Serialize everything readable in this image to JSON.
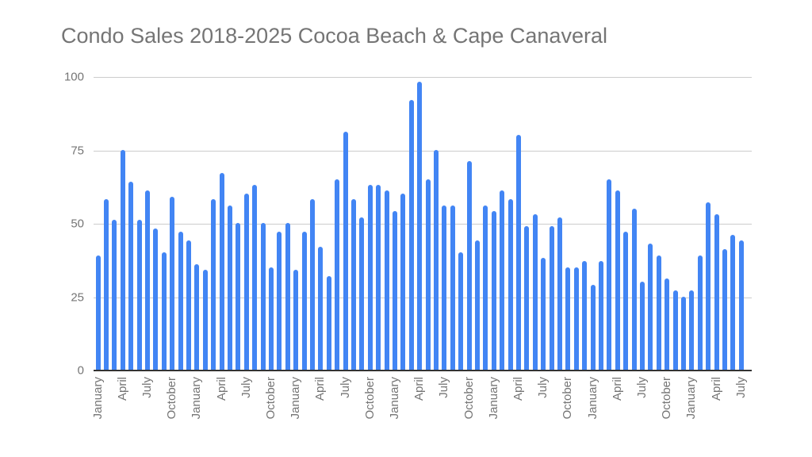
{
  "chart_data": {
    "type": "bar",
    "title": "Condo Sales 2018-2025 Cocoa Beach & Cape Canaveral",
    "xlabel": "",
    "ylabel": "",
    "ylim": [
      0,
      100
    ],
    "yticks": [
      0,
      25,
      50,
      75,
      100
    ],
    "grid": true,
    "legend": null,
    "bar_color": "#4285f4",
    "tick_labels": [
      "January",
      "April",
      "July",
      "October",
      "January",
      "April",
      "July",
      "October",
      "January",
      "April",
      "July",
      "October",
      "January",
      "April",
      "July",
      "October",
      "January",
      "April",
      "July",
      "October",
      "January",
      "April",
      "July",
      "October",
      "January",
      "April",
      "July"
    ],
    "categories": [
      "2018-01",
      "2018-02",
      "2018-03",
      "2018-04",
      "2018-05",
      "2018-06",
      "2018-07",
      "2018-08",
      "2018-09",
      "2018-10",
      "2018-11",
      "2018-12",
      "2019-01",
      "2019-02",
      "2019-03",
      "2019-04",
      "2019-05",
      "2019-06",
      "2019-07",
      "2019-08",
      "2019-09",
      "2019-10",
      "2019-11",
      "2019-12",
      "2020-01",
      "2020-02",
      "2020-03",
      "2020-04",
      "2020-05",
      "2020-06",
      "2020-07",
      "2020-08",
      "2020-09",
      "2020-10",
      "2020-11",
      "2020-12",
      "2021-01",
      "2021-02",
      "2021-03",
      "2021-04",
      "2021-05",
      "2021-06",
      "2021-07",
      "2021-08",
      "2021-09",
      "2021-10",
      "2021-11",
      "2021-12",
      "2022-01",
      "2022-02",
      "2022-03",
      "2022-04",
      "2022-05",
      "2022-06",
      "2022-07",
      "2022-08",
      "2022-09",
      "2022-10",
      "2022-11",
      "2022-12",
      "2023-01",
      "2023-02",
      "2023-03",
      "2023-04",
      "2023-05",
      "2023-06",
      "2023-07",
      "2023-08",
      "2023-09",
      "2023-10",
      "2023-11",
      "2023-12",
      "2024-01",
      "2024-02",
      "2024-03",
      "2024-04",
      "2024-05",
      "2024-06",
      "2024-07"
    ],
    "values": [
      39,
      58,
      51,
      75,
      64,
      51,
      61,
      48,
      40,
      59,
      47,
      44,
      36,
      34,
      58,
      67,
      56,
      50,
      60,
      63,
      50,
      35,
      47,
      50,
      34,
      47,
      58,
      42,
      32,
      65,
      81,
      58,
      52,
      63,
      63,
      61,
      54,
      60,
      92,
      98,
      65,
      75,
      56,
      56,
      40,
      71,
      44,
      56,
      54,
      61,
      58,
      80,
      49,
      53,
      38,
      49,
      52,
      35,
      35,
      37,
      29,
      37,
      65,
      61,
      47,
      55,
      30,
      43,
      39,
      31,
      27,
      25,
      27,
      39,
      57,
      53,
      41,
      46,
      44
    ]
  }
}
